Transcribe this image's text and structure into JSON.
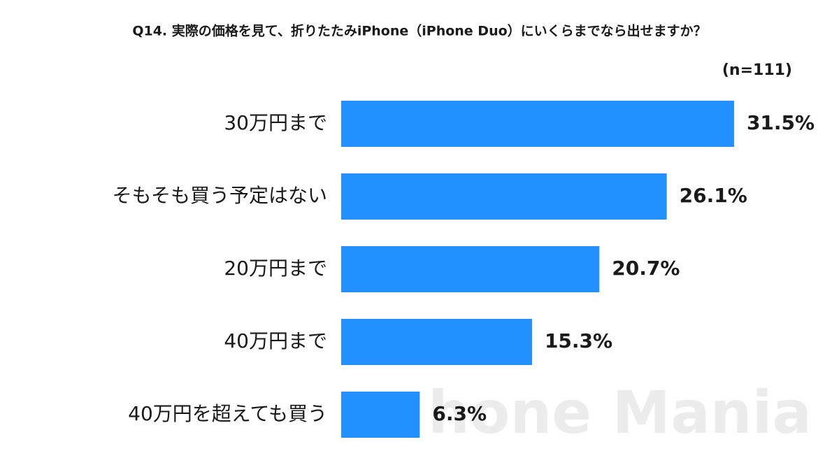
{
  "chart_data": {
    "type": "bar",
    "orientation": "horizontal",
    "title": "Q14. 実際の価格を見て、折りたたみiPhone（iPhone Duo）にいくらまでなら出せますか？",
    "note": "(n=111)",
    "watermark": "hone Mania",
    "categories": [
      "30万円まで",
      "そもそも買う予定はない",
      "20万円まで",
      "40万円まで",
      "40万円を超えても買う"
    ],
    "values": [
      31.5,
      26.1,
      20.7,
      15.3,
      6.3
    ],
    "value_labels": [
      "31.5%",
      "26.1%",
      "20.7%",
      "15.3%",
      "6.3%"
    ],
    "color": "#2291ff"
  }
}
